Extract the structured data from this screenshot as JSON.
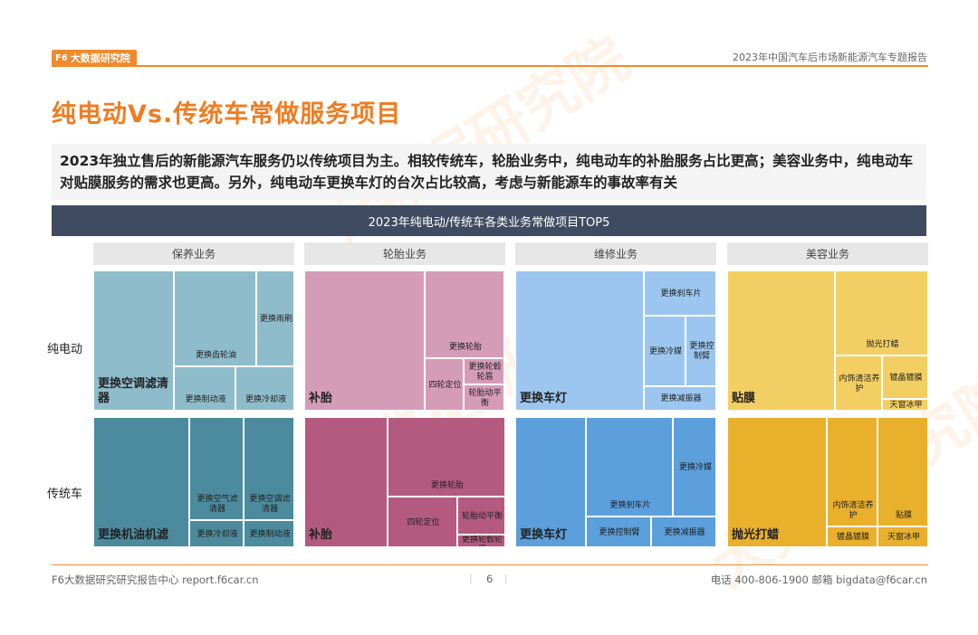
{
  "header": {
    "logo_text": "大数据研究院",
    "logo_mark": "F6",
    "report_title": "2023年中国汽车后市场新能源汽车专题报告"
  },
  "page_title": "纯电动Vs.传统车常做服务项目",
  "summary": "2023年独立售后的新能源汽车服务仍以传统项目为主。相较传统车，轮胎业务中，纯电动车的补胎服务占比更高；美容业务中，纯电动车对贴膜服务的需求也更高。另外，纯电动车更换车灯的台次占比较高，考虑与新能源车的事故率有关",
  "watermark": "大数据研究院",
  "colors": {
    "accent": "#f08a2c",
    "maintenance_ev": "#8fbccb",
    "maintenance_ice": "#4c8b9e",
    "tire_ev": "#d59cb8",
    "tire_ice": "#b45a80",
    "repair_ev": "#9cc6ef",
    "repair_ice": "#5b9fdc",
    "beauty_ev": "#f3cf63",
    "beauty_ice": "#e9b02c"
  },
  "chart_data": {
    "type": "treemap",
    "title": "2023年纯电动/传统车各类业务常做项目TOP5",
    "columns": [
      "保养业务",
      "轮胎业务",
      "维修业务",
      "美容业务"
    ],
    "rows": [
      "纯电动",
      "传统车"
    ],
    "groups": [
      {
        "column": "保养业务",
        "row": "纯电动",
        "items": [
          "更换空调滤清器",
          "更换齿轮油",
          "更换雨刷",
          "更换制动液",
          "更换冷却液"
        ]
      },
      {
        "column": "保养业务",
        "row": "传统车",
        "items": [
          "更换机油机滤",
          "更换空气滤清器",
          "更换空调滤清器",
          "更换冷却液",
          "更换制动液"
        ]
      },
      {
        "column": "轮胎业务",
        "row": "纯电动",
        "items": [
          "补胎",
          "更换轮胎",
          "四轮定位",
          "更换轮毂轮眉",
          "轮胎动平衡"
        ]
      },
      {
        "column": "轮胎业务",
        "row": "传统车",
        "items": [
          "补胎",
          "更换轮胎",
          "四轮定位",
          "轮胎动平衡",
          "更换轮毂轮眉"
        ]
      },
      {
        "column": "维修业务",
        "row": "纯电动",
        "items": [
          "更换车灯",
          "更换刹车片",
          "更换冷媒",
          "更换控制臂",
          "更换减振器"
        ]
      },
      {
        "column": "维修业务",
        "row": "传统车",
        "items": [
          "更换车灯",
          "更换刹车片",
          "更换冷媒",
          "更换控制臂",
          "更换减振器"
        ]
      },
      {
        "column": "美容业务",
        "row": "纯电动",
        "items": [
          "贴膜",
          "抛光打蜡",
          "内饰清洁养护",
          "镀晶镀膜",
          "天窗冰甲"
        ]
      },
      {
        "column": "美容业务",
        "row": "传统车",
        "items": [
          "抛光打蜡",
          "内饰清洁养护",
          "贴膜",
          "镀晶镀膜",
          "天窗冰甲"
        ]
      }
    ]
  },
  "footer": {
    "left": "F6大数据研究研究报告中心 report.f6car.cn",
    "page_number": "6",
    "right": "电话 400-806-1900  邮箱 bigdata@f6car.cn"
  }
}
